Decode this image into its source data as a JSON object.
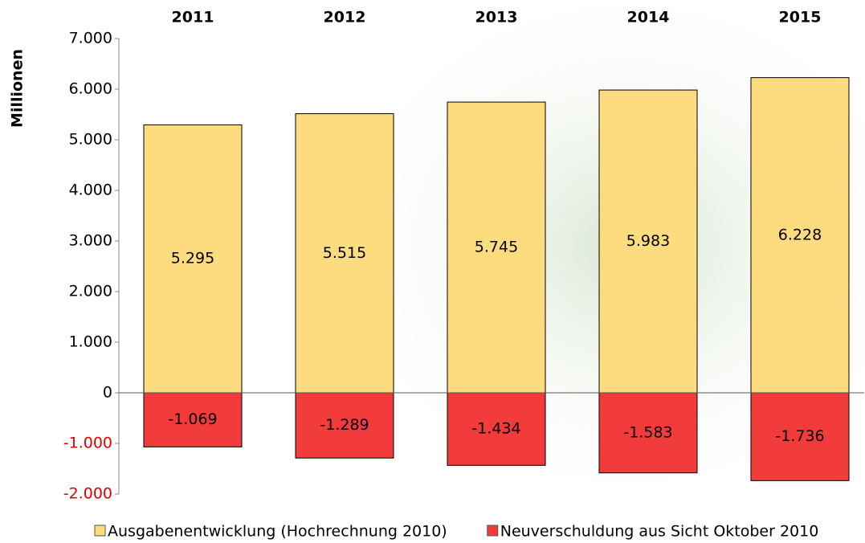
{
  "chart_data": {
    "type": "bar",
    "categories": [
      "2011",
      "2012",
      "2013",
      "2014",
      "2015"
    ],
    "y_label": "Millionen",
    "series": [
      {
        "name": "Ausgabenentwicklung (Hochrechnung 2010)",
        "color": "#fddc80",
        "values": [
          5295,
          5515,
          5745,
          5983,
          6228
        ],
        "value_labels": [
          "5.295",
          "5.515",
          "5.745",
          "5.983",
          "6.228"
        ]
      },
      {
        "name": "Neuverschuldung aus Sicht Oktober 2010",
        "color": "#f23b3b",
        "values": [
          -1069,
          -1289,
          -1434,
          -1583,
          -1736
        ],
        "value_labels": [
          "-1.069",
          "-1.289",
          "-1.434",
          "-1.583",
          "-1.736"
        ]
      }
    ],
    "ylim": [
      -2000,
      7000
    ],
    "yticks": [
      {
        "value": -2000,
        "label": "-2.000"
      },
      {
        "value": -1000,
        "label": "-1.000"
      },
      0,
      {
        "value": 1000,
        "label": "1.000"
      },
      {
        "value": 2000,
        "label": "2.000"
      },
      {
        "value": 3000,
        "label": "3.000"
      },
      {
        "value": 4000,
        "label": "4.000"
      },
      {
        "value": 5000,
        "label": "5.000"
      },
      {
        "value": 6000,
        "label": "6.000"
      },
      {
        "value": 7000,
        "label": "7.000"
      }
    ],
    "negative_tick_color": "#e00000",
    "legend": "bottom"
  }
}
